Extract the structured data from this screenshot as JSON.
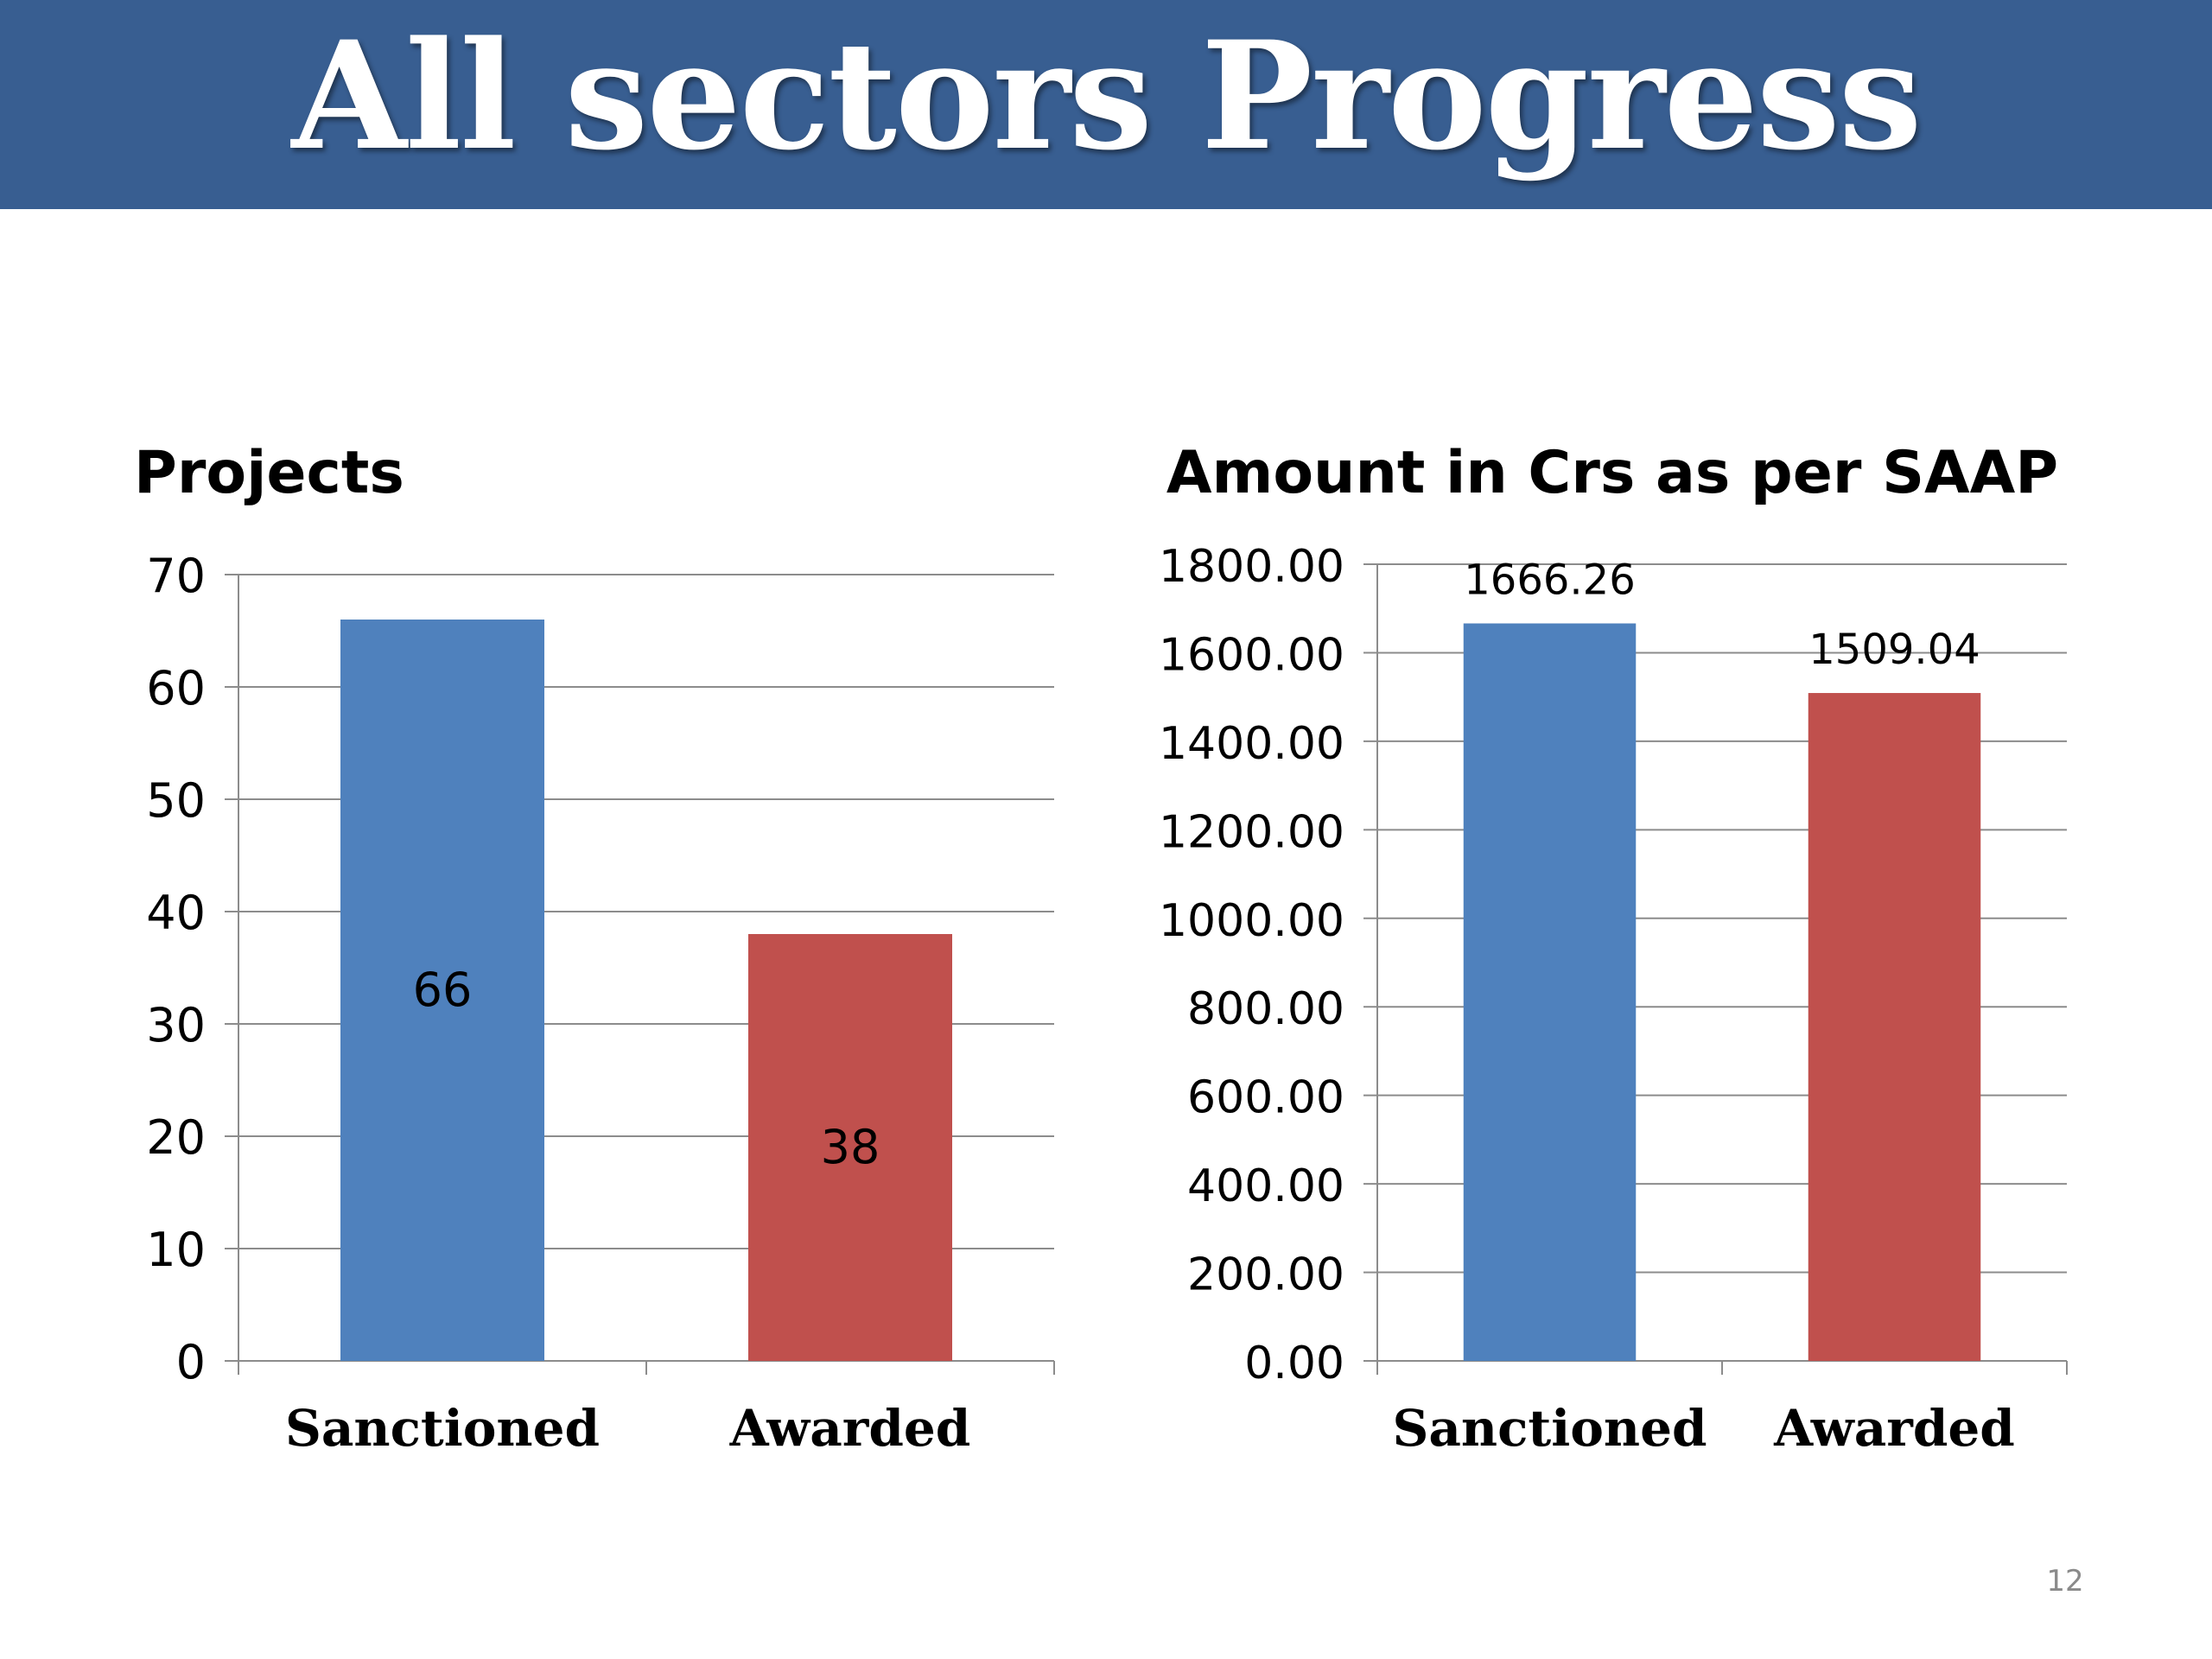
{
  "slide": {
    "title": "All sectors Progress",
    "page_number": "12",
    "banner_color": "#385e91"
  },
  "chart_data": [
    {
      "type": "bar",
      "title": "Projects",
      "categories": [
        "Sanctioned",
        "Awarded"
      ],
      "values": [
        66,
        38
      ],
      "data_labels": [
        "66",
        "38"
      ],
      "bar_colors": [
        "#4f81bd",
        "#c0504d"
      ],
      "ylim": [
        0,
        70
      ],
      "yticks": [
        "0",
        "10",
        "20",
        "30",
        "40",
        "50",
        "60",
        "70"
      ],
      "grid": true,
      "legend": "none",
      "label_position": "inside"
    },
    {
      "type": "bar",
      "title": "Amount in Crs as per SAAP",
      "categories": [
        "Sanctioned",
        "Awarded"
      ],
      "values": [
        1666.26,
        1509.04
      ],
      "data_labels": [
        "1666.26",
        "1509.04"
      ],
      "bar_colors": [
        "#4f81bd",
        "#c0504d"
      ],
      "ylim": [
        0,
        1800
      ],
      "yticks": [
        "0.00",
        "200.00",
        "400.00",
        "600.00",
        "800.00",
        "1000.00",
        "1200.00",
        "1400.00",
        "1600.00",
        "1800.00"
      ],
      "grid": true,
      "legend": "none",
      "label_position": "outside-end"
    }
  ]
}
